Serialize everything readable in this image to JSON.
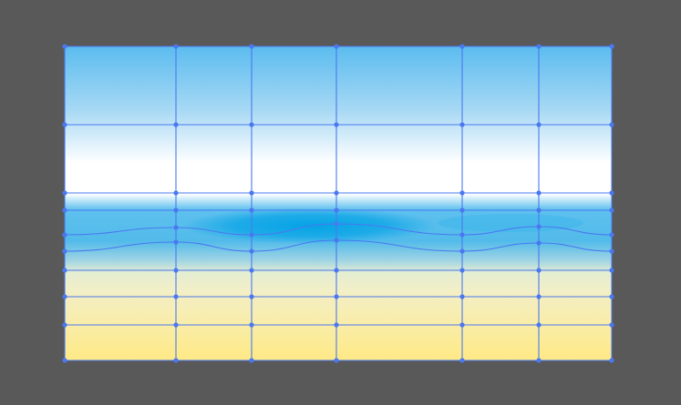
{
  "canvas": {
    "background": "#595959"
  },
  "artwork": {
    "type": "gradient-mesh",
    "colors": {
      "sky_top": "#5bbcef",
      "sky_mid": "#a6d8f4",
      "horizon": "#ffffff",
      "sea_light": "#5ec0ee",
      "sea_deep": "#05a3e6",
      "shore": "#e4eed2",
      "sand_light": "#f3efc6",
      "sand": "#ffea86",
      "mesh_line": "#4a78f0"
    }
  }
}
